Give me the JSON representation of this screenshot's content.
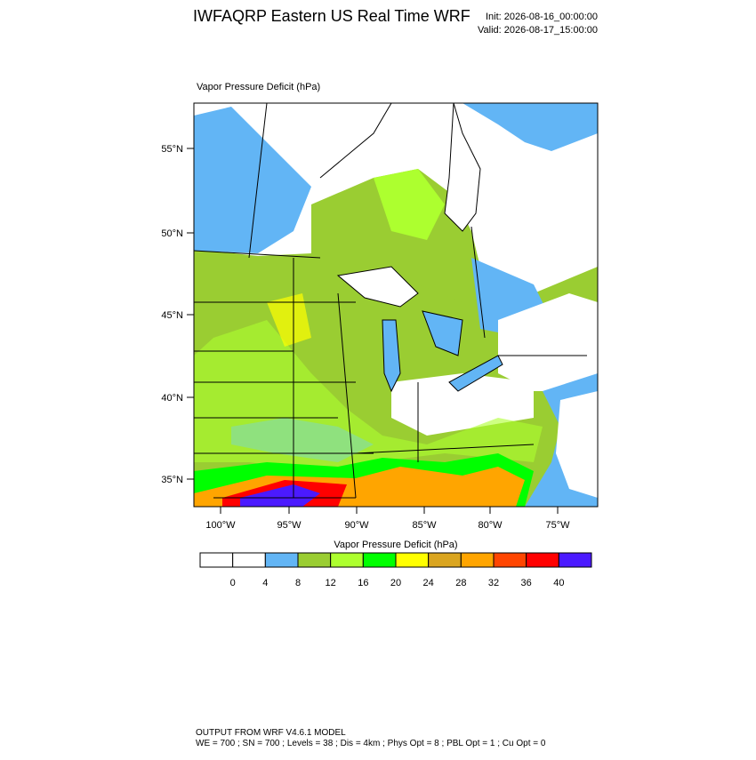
{
  "header": {
    "title": "IWFAQRP Eastern US Real Time WRF",
    "init": "Init: 2026-08-16_00:00:00",
    "valid": "Valid: 2026-08-17_15:00:00"
  },
  "map": {
    "label": "Vapor Pressure Deficit   (hPa)",
    "lat_labels": [
      "55°N",
      "50°N",
      "45°N",
      "40°N",
      "35°N"
    ],
    "lon_labels": [
      "100°W",
      "95°W",
      "90°W",
      "85°W",
      "80°W",
      "75°W"
    ]
  },
  "colorbar": {
    "title": "Vapor Pressure Deficit  (hPa)",
    "levels": [
      0,
      4,
      8,
      12,
      16,
      20,
      24,
      28,
      32,
      36,
      40
    ],
    "colors": [
      "#ffffff",
      "#ffffff",
      "#62b5f5",
      "#9acd32",
      "#adff2f",
      "#00ff00",
      "#ffff00",
      "#daa520",
      "#ffa500",
      "#ff4500",
      "#ff0000",
      "#4b1aff"
    ]
  },
  "footer": {
    "line1": "OUTPUT FROM WRF V4.6.1 MODEL",
    "line2": "WE = 700 ; SN = 700 ; Levels = 38 ; Dis = 4km ; Phys Opt = 8 ; PBL Opt = 1 ; Cu Opt = 0"
  }
}
